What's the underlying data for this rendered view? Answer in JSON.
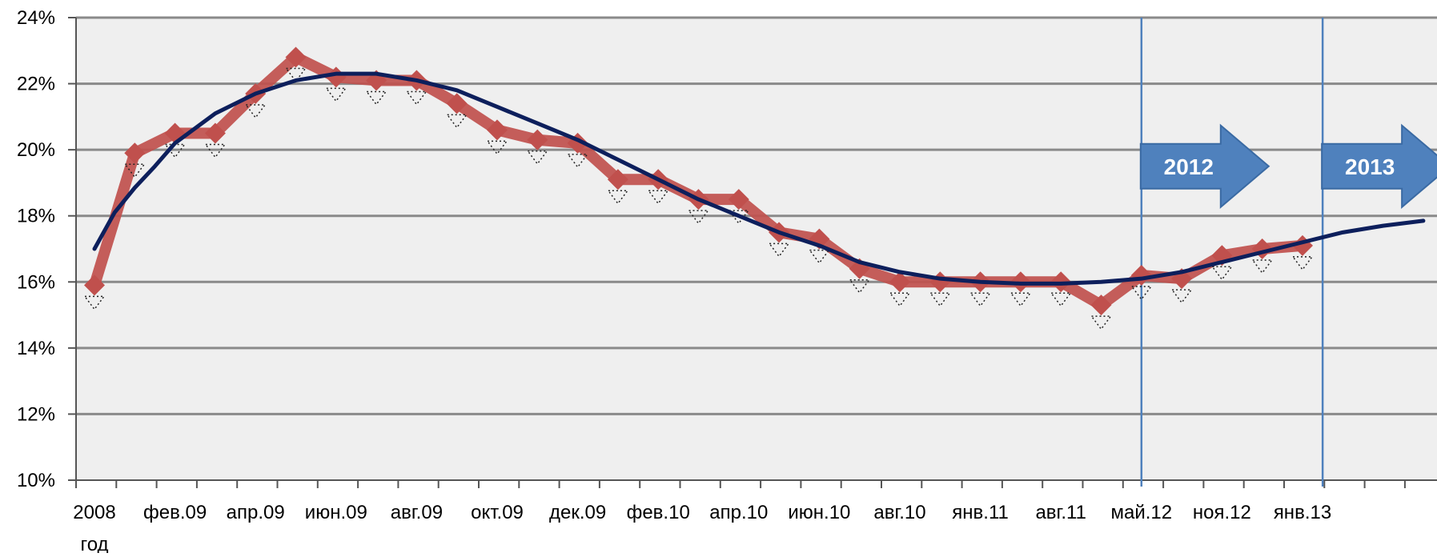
{
  "chart_data": {
    "type": "line",
    "title": "",
    "xlabel": "",
    "ylabel": "",
    "ylim": [
      10,
      24
    ],
    "yticks": [
      "10%",
      "12%",
      "14%",
      "16%",
      "18%",
      "20%",
      "22%",
      "24%"
    ],
    "ytick_values": [
      10,
      12,
      14,
      16,
      18,
      20,
      22,
      24
    ],
    "grid": true,
    "x_tick_labels": [
      {
        "i": 0,
        "text": "2008"
      },
      {
        "i": 2,
        "text": "фев.09"
      },
      {
        "i": 4,
        "text": "апр.09"
      },
      {
        "i": 6,
        "text": "июн.09"
      },
      {
        "i": 8,
        "text": "авг.09"
      },
      {
        "i": 10,
        "text": "окт.09"
      },
      {
        "i": 12,
        "text": "дек.09"
      },
      {
        "i": 14,
        "text": "фев.10"
      },
      {
        "i": 16,
        "text": "апр.10"
      },
      {
        "i": 18,
        "text": "июн.10"
      },
      {
        "i": 20,
        "text": "авг.10"
      },
      {
        "i": 22,
        "text": "янв.11"
      },
      {
        "i": 24,
        "text": "авг.11"
      },
      {
        "i": 26,
        "text": "май.12"
      },
      {
        "i": 28,
        "text": "ноя.12"
      },
      {
        "i": 30,
        "text": "янв.13"
      }
    ],
    "x_sublabel": {
      "i": 0,
      "text": "год"
    },
    "point_count": 34,
    "series": [
      {
        "color": "#c0504d",
        "marker": "diamond",
        "points": [
          [
            0,
            15.9
          ],
          [
            1,
            19.9
          ],
          [
            2,
            20.5
          ],
          [
            3,
            20.5
          ],
          [
            4,
            21.7
          ],
          [
            5,
            22.8
          ],
          [
            6,
            22.2
          ],
          [
            7,
            22.1
          ],
          [
            8,
            22.1
          ],
          [
            9,
            21.4
          ],
          [
            10,
            20.6
          ],
          [
            11,
            20.3
          ],
          [
            12,
            20.2
          ],
          [
            13,
            19.1
          ],
          [
            14,
            19.1
          ],
          [
            15,
            18.5
          ],
          [
            16,
            18.5
          ],
          [
            17,
            17.5
          ],
          [
            18,
            17.3
          ],
          [
            19,
            16.4
          ],
          [
            20,
            16.0
          ],
          [
            21,
            16.0
          ],
          [
            22,
            16.0
          ],
          [
            23,
            16.0
          ],
          [
            24,
            16.0
          ],
          [
            25,
            15.3
          ],
          [
            26,
            16.2
          ],
          [
            27,
            16.1
          ],
          [
            28,
            16.8
          ],
          [
            29,
            17.0
          ],
          [
            30,
            17.1
          ]
        ]
      },
      {
        "color": "#0d1f5c",
        "marker": "none",
        "kind": "trend",
        "points": [
          [
            0,
            17.0
          ],
          [
            0.5,
            18.1
          ],
          [
            1,
            18.85
          ],
          [
            1.5,
            19.5
          ],
          [
            2,
            20.2
          ],
          [
            3,
            21.1
          ],
          [
            4,
            21.7
          ],
          [
            5,
            22.1
          ],
          [
            6,
            22.3
          ],
          [
            7,
            22.3
          ],
          [
            8,
            22.1
          ],
          [
            9,
            21.8
          ],
          [
            10,
            21.3
          ],
          [
            11,
            20.8
          ],
          [
            12,
            20.3
          ],
          [
            13,
            19.7
          ],
          [
            14,
            19.1
          ],
          [
            15,
            18.5
          ],
          [
            16,
            18.0
          ],
          [
            17,
            17.5
          ],
          [
            18,
            17.1
          ],
          [
            19,
            16.6
          ],
          [
            20,
            16.3
          ],
          [
            21,
            16.1
          ],
          [
            22,
            16.0
          ],
          [
            23,
            15.95
          ],
          [
            24,
            15.95
          ],
          [
            25,
            16.0
          ],
          [
            26,
            16.1
          ],
          [
            27,
            16.3
          ],
          [
            28,
            16.6
          ],
          [
            29,
            16.9
          ],
          [
            30,
            17.2
          ],
          [
            31,
            17.5
          ],
          [
            32,
            17.7
          ],
          [
            33,
            17.85
          ]
        ]
      }
    ],
    "vertical_lines": [
      26,
      30.5
    ],
    "annotations": [
      {
        "text": "2012",
        "i": 26,
        "y": 19.5
      },
      {
        "text": "2013",
        "i": 30.5,
        "y": 19.5
      }
    ],
    "colors": {
      "plot_bg": "#efefef",
      "gridline": "#8a8a8a",
      "vline": "#4f81bd",
      "arrow_fill": "#4f81bd",
      "arrow_stroke": "#3a6aa3"
    }
  }
}
